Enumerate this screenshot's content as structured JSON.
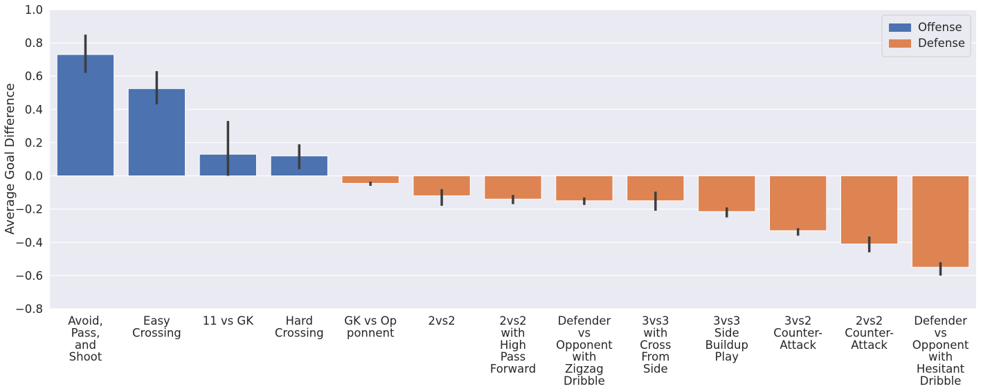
{
  "chart_data": {
    "type": "bar",
    "y_label": "Average Goal Difference",
    "categories": [
      [
        "Avoid,",
        "Pass,",
        "and",
        "Shoot"
      ],
      [
        "Easy",
        "Crossing"
      ],
      [
        "11 vs GK"
      ],
      [
        "Hard",
        "Crossing"
      ],
      [
        "GK vs Op",
        "ponnent"
      ],
      [
        "2vs2"
      ],
      [
        "2vs2",
        "with",
        "High",
        "Pass",
        "Forward"
      ],
      [
        "Defender",
        "vs",
        "Opponent",
        "with",
        "Zigzag",
        "Dribble"
      ],
      [
        "3vs3",
        "with",
        "Cross",
        "From",
        "Side"
      ],
      [
        "3vs3",
        "Side",
        "Buildup",
        "Play"
      ],
      [
        "3vs2",
        "Counter-",
        "Attack"
      ],
      [
        "2vs2",
        "Counter-",
        "Attack"
      ],
      [
        "Defender",
        "vs",
        "Opponent",
        "with",
        "Hesitant",
        "Dribble"
      ]
    ],
    "series": [
      {
        "name": "Offense",
        "color": "#4c72b0",
        "values": [
          0.73,
          0.525,
          0.13,
          0.12,
          null,
          null,
          null,
          null,
          null,
          null,
          null,
          null,
          null
        ],
        "ci_low": [
          0.62,
          0.43,
          0.0,
          0.04,
          null,
          null,
          null,
          null,
          null,
          null,
          null,
          null,
          null
        ],
        "ci_high": [
          0.85,
          0.63,
          0.33,
          0.19,
          null,
          null,
          null,
          null,
          null,
          null,
          null,
          null,
          null
        ]
      },
      {
        "name": "Defense",
        "color": "#dd8452",
        "values": [
          null,
          null,
          null,
          null,
          -0.045,
          -0.12,
          -0.14,
          -0.15,
          -0.15,
          -0.215,
          -0.33,
          -0.41,
          -0.55
        ],
        "ci_low": [
          null,
          null,
          null,
          null,
          -0.06,
          -0.18,
          -0.17,
          -0.175,
          -0.21,
          -0.25,
          -0.36,
          -0.46,
          -0.6
        ],
        "ci_high": [
          null,
          null,
          null,
          null,
          -0.035,
          -0.08,
          -0.115,
          -0.13,
          -0.095,
          -0.19,
          -0.315,
          -0.365,
          -0.52
        ]
      }
    ],
    "ylim": [
      -0.8,
      1.0
    ],
    "yticks": [
      {
        "value": -0.8,
        "label": "−0.8"
      },
      {
        "value": -0.6,
        "label": "−0.6"
      },
      {
        "value": -0.4,
        "label": "−0.4"
      },
      {
        "value": -0.2,
        "label": "−0.2"
      },
      {
        "value": 0.0,
        "label": "0.0"
      },
      {
        "value": 0.2,
        "label": "0.2"
      },
      {
        "value": 0.4,
        "label": "0.4"
      },
      {
        "value": 0.6,
        "label": "0.6"
      },
      {
        "value": 0.8,
        "label": "0.8"
      },
      {
        "value": 1.0,
        "label": "1.0"
      }
    ],
    "grid": true,
    "legend": "upper right",
    "error_color": "#3d3d3d"
  }
}
